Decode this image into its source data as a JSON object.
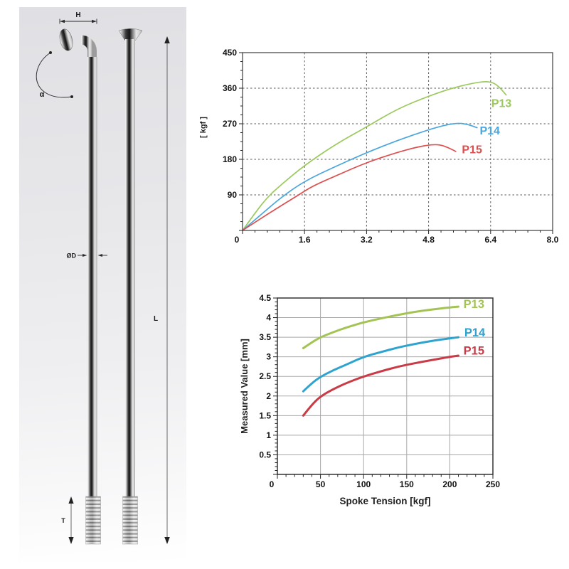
{
  "diagram": {
    "name": "spoke-dimension-diagram",
    "labels": {
      "head_width": "H",
      "bend_angle": "α",
      "diameter": "ØD",
      "length": "L",
      "thread_length": "T"
    }
  },
  "chart_data": [
    {
      "type": "line",
      "title": "",
      "xlabel": "",
      "ylabel": "[ kgf ]",
      "xlim": [
        0,
        8
      ],
      "ylim": [
        0,
        450
      ],
      "xticks": [
        0,
        1.6,
        3.2,
        4.8,
        6.4,
        8
      ],
      "xtick_labels": [
        "0",
        "1.6",
        "3.2",
        "4.8",
        "6.4",
        "8.0"
      ],
      "yticks": [
        90,
        180,
        270,
        360,
        450
      ],
      "ytick_labels": [
        "90",
        "180",
        "270",
        "360",
        "450"
      ],
      "x_minor_step": 0.32,
      "y_minor_step": 22.5,
      "grid": "dashed",
      "legend": "inline-labels",
      "series": [
        {
          "name": "P13",
          "color": "#9cc95e",
          "label_pos": [
            6.68,
            312
          ],
          "points": [
            [
              0,
              0
            ],
            [
              0.35,
              48
            ],
            [
              0.65,
              85
            ],
            [
              1.0,
              116
            ],
            [
              1.6,
              165
            ],
            [
              2.4,
              218
            ],
            [
              3.2,
              262
            ],
            [
              4.0,
              308
            ],
            [
              4.8,
              340
            ],
            [
              5.4,
              360
            ],
            [
              5.9,
              372
            ],
            [
              6.3,
              378
            ],
            [
              6.55,
              371
            ],
            [
              6.8,
              343
            ]
          ]
        },
        {
          "name": "P14",
          "color": "#4aa6de",
          "label_pos": [
            6.38,
            243
          ],
          "points": [
            [
              0,
              0
            ],
            [
              0.5,
              42
            ],
            [
              1.0,
              84
            ],
            [
              1.6,
              125
            ],
            [
              2.4,
              162
            ],
            [
              3.2,
              197
            ],
            [
              4.0,
              228
            ],
            [
              4.8,
              255
            ],
            [
              5.2,
              266
            ],
            [
              5.55,
              272
            ],
            [
              5.8,
              269
            ],
            [
              6.05,
              260
            ]
          ]
        },
        {
          "name": "P15",
          "color": "#dd4f4f",
          "label_pos": [
            5.92,
            195
          ],
          "points": [
            [
              0,
              0
            ],
            [
              0.5,
              32
            ],
            [
              1.0,
              63
            ],
            [
              1.45,
              90
            ],
            [
              1.8,
              112
            ],
            [
              2.4,
              138
            ],
            [
              3.2,
              172
            ],
            [
              4.0,
              198
            ],
            [
              4.5,
              211
            ],
            [
              4.85,
              217
            ],
            [
              5.1,
              217
            ],
            [
              5.3,
              210
            ],
            [
              5.5,
              200
            ]
          ]
        }
      ]
    },
    {
      "type": "line",
      "title": "",
      "xlabel": "Spoke Tension [kgf]",
      "ylabel": "Measured Value [mm]",
      "xlim": [
        0,
        250
      ],
      "ylim": [
        0,
        4.5
      ],
      "xticks": [
        0,
        50,
        100,
        150,
        200,
        250
      ],
      "xtick_labels": [
        "0",
        "50",
        "100",
        "150",
        "200",
        "250"
      ],
      "yticks": [
        0.5,
        1,
        1.5,
        2,
        2.5,
        3,
        3.5,
        4,
        4.5
      ],
      "ytick_labels": [
        "0.5",
        "1",
        "1.5",
        "2",
        "2.5",
        "3",
        "3.5",
        "4",
        "4.5"
      ],
      "x_minor_step": 10,
      "y_minor_step": 0.1,
      "grid": "solid",
      "legend": "inline-labels",
      "series": [
        {
          "name": "P13",
          "color": "#a3c454",
          "label_pos": [
            228,
            4.25
          ],
          "points": [
            [
              30,
              3.22
            ],
            [
              40,
              3.37
            ],
            [
              50,
              3.5
            ],
            [
              65,
              3.63
            ],
            [
              80,
              3.75
            ],
            [
              100,
              3.88
            ],
            [
              120,
              3.98
            ],
            [
              140,
              4.07
            ],
            [
              160,
              4.15
            ],
            [
              180,
              4.21
            ],
            [
              200,
              4.26
            ],
            [
              210,
              4.28
            ]
          ]
        },
        {
          "name": "P14",
          "color": "#2fa3cf",
          "label_pos": [
            229,
            3.52
          ],
          "points": [
            [
              30,
              2.12
            ],
            [
              40,
              2.33
            ],
            [
              50,
              2.49
            ],
            [
              65,
              2.66
            ],
            [
              80,
              2.8
            ],
            [
              100,
              3.0
            ],
            [
              120,
              3.12
            ],
            [
              140,
              3.24
            ],
            [
              160,
              3.33
            ],
            [
              180,
              3.41
            ],
            [
              200,
              3.47
            ],
            [
              210,
              3.5
            ]
          ]
        },
        {
          "name": "P15",
          "color": "#c93b47",
          "label_pos": [
            228,
            3.06
          ],
          "points": [
            [
              30,
              1.5
            ],
            [
              40,
              1.78
            ],
            [
              50,
              1.99
            ],
            [
              65,
              2.18
            ],
            [
              80,
              2.33
            ],
            [
              100,
              2.5
            ],
            [
              120,
              2.63
            ],
            [
              140,
              2.75
            ],
            [
              160,
              2.84
            ],
            [
              180,
              2.92
            ],
            [
              200,
              3.0
            ],
            [
              210,
              3.03
            ]
          ]
        }
      ]
    }
  ]
}
